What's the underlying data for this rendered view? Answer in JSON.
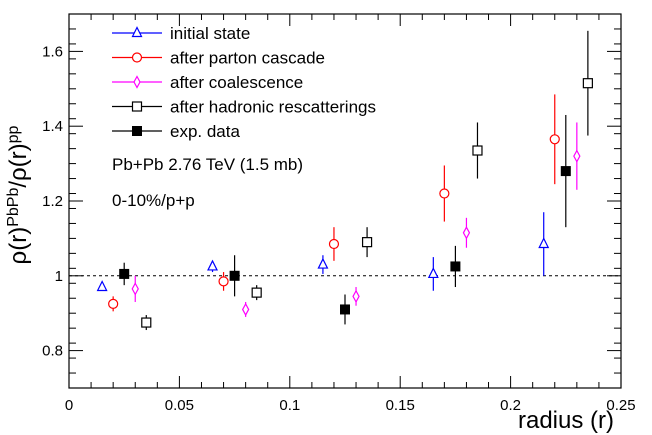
{
  "chart_data": {
    "type": "scatter",
    "xlabel": "radius (r)",
    "ylabel": "ρ(r)^PbPb/ρ(r)^pp",
    "ylabel_parts": {
      "base1": "ρ(r)",
      "sup1": "PbPb",
      "sep": "/ρ(r)",
      "sup2": "pp"
    },
    "xlim": [
      0,
      0.25
    ],
    "ylim": [
      0.7,
      1.7
    ],
    "xticks": [
      "0",
      "0.05",
      "0.1",
      "0.15",
      "0.2",
      "0.25"
    ],
    "xtick_values": [
      0,
      0.05,
      0.1,
      0.15,
      0.2,
      0.25
    ],
    "yticks": [
      "0.8",
      "1",
      "1.2",
      "1.4",
      "1.6"
    ],
    "ytick_values": [
      0.8,
      1.0,
      1.2,
      1.4,
      1.6
    ],
    "reference_line": 1.0,
    "annotations": [
      "Pb+Pb 2.76 TeV (1.5 mb)",
      "0-10%/p+p"
    ],
    "legend_position": "top-left",
    "series": [
      {
        "name": "initial state",
        "color": "#0000ff",
        "marker": "triangle-open",
        "points": [
          {
            "x": 0.015,
            "y": 0.97,
            "err": 0.01
          },
          {
            "x": 0.065,
            "y": 1.025,
            "err": 0.015
          },
          {
            "x": 0.115,
            "y": 1.03,
            "err": 0.025
          },
          {
            "x": 0.165,
            "y": 1.005,
            "err": 0.045
          },
          {
            "x": 0.215,
            "y": 1.085,
            "err": 0.085
          }
        ]
      },
      {
        "name": "after parton cascade",
        "color": "#ff0000",
        "marker": "circle-open",
        "points": [
          {
            "x": 0.02,
            "y": 0.925,
            "err": 0.02
          },
          {
            "x": 0.07,
            "y": 0.985,
            "err": 0.025
          },
          {
            "x": 0.12,
            "y": 1.085,
            "err": 0.045
          },
          {
            "x": 0.17,
            "y": 1.22,
            "err": 0.075
          },
          {
            "x": 0.22,
            "y": 1.365,
            "err": 0.12
          }
        ]
      },
      {
        "name": "after coalescence",
        "color": "#ff00ff",
        "marker": "diamond-open",
        "points": [
          {
            "x": 0.03,
            "y": 0.965,
            "err": 0.035
          },
          {
            "x": 0.08,
            "y": 0.91,
            "err": 0.02
          },
          {
            "x": 0.13,
            "y": 0.945,
            "err": 0.025
          },
          {
            "x": 0.18,
            "y": 1.115,
            "err": 0.04
          },
          {
            "x": 0.23,
            "y": 1.32,
            "err": 0.09
          }
        ]
      },
      {
        "name": "after hadronic rescatterings",
        "color": "#000000",
        "marker": "square-open",
        "points": [
          {
            "x": 0.035,
            "y": 0.875,
            "err": 0.02
          },
          {
            "x": 0.085,
            "y": 0.955,
            "err": 0.02
          },
          {
            "x": 0.135,
            "y": 1.09,
            "err": 0.04
          },
          {
            "x": 0.185,
            "y": 1.335,
            "err": 0.075
          },
          {
            "x": 0.235,
            "y": 1.515,
            "err": 0.14
          }
        ]
      },
      {
        "name": "exp. data",
        "color": "#000000",
        "marker": "square-filled",
        "points": [
          {
            "x": 0.025,
            "y": 1.005,
            "err": 0.03
          },
          {
            "x": 0.075,
            "y": 1.0,
            "err": 0.055
          },
          {
            "x": 0.125,
            "y": 0.91,
            "err": 0.04
          },
          {
            "x": 0.175,
            "y": 1.025,
            "err": 0.055
          },
          {
            "x": 0.225,
            "y": 1.28,
            "err": 0.15
          }
        ]
      }
    ]
  }
}
